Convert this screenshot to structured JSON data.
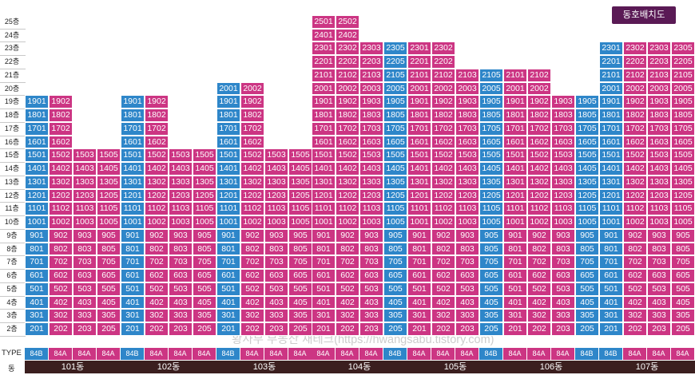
{
  "badge": "동호배치도",
  "floor_suffix": "층",
  "type_row_label": "TYPE",
  "building_row_label": "동",
  "watermark": "황사부 부동산 재테크(https://hwangsabu.tistory.com)",
  "colors": {
    "pink": "#cc3583",
    "blue": "#2e86c9",
    "name_bg": "#3b1f1f",
    "badge_bg": "#5a1a55"
  },
  "chart_data": {
    "type": "table",
    "floors": [
      2,
      3,
      4,
      5,
      6,
      7,
      8,
      9,
      10,
      11,
      12,
      13,
      14,
      15,
      16,
      17,
      18,
      19,
      20,
      21,
      22,
      23,
      24,
      25
    ],
    "buildings": [
      {
        "name": "101동",
        "units": [
          1,
          2,
          3,
          5
        ],
        "types": [
          "84B",
          "84A",
          "84A",
          "84A"
        ],
        "colors": [
          "blue",
          "pink",
          "pink",
          "pink"
        ],
        "max_floor": [
          19,
          19,
          15,
          15
        ]
      },
      {
        "name": "102동",
        "units": [
          1,
          2,
          3,
          5
        ],
        "types": [
          "84B",
          "84A",
          "84A",
          "84A"
        ],
        "colors": [
          "blue",
          "pink",
          "pink",
          "pink"
        ],
        "max_floor": [
          19,
          19,
          15,
          15
        ]
      },
      {
        "name": "103동",
        "units": [
          1,
          2,
          3,
          5
        ],
        "types": [
          "84B",
          "84A",
          "84A",
          "84A"
        ],
        "colors": [
          "blue",
          "pink",
          "pink",
          "pink"
        ],
        "max_floor": [
          20,
          20,
          15,
          15
        ]
      },
      {
        "name": "104동",
        "units": [
          1,
          2,
          3,
          5
        ],
        "types": [
          "84A",
          "84A",
          "84A",
          "84B"
        ],
        "colors": [
          "pink",
          "pink",
          "pink",
          "blue"
        ],
        "max_floor": [
          25,
          25,
          23,
          23
        ]
      },
      {
        "name": "105동",
        "units": [
          1,
          2,
          3,
          5
        ],
        "types": [
          "84A",
          "84A",
          "84A",
          "84B"
        ],
        "colors": [
          "pink",
          "pink",
          "pink",
          "blue"
        ],
        "max_floor": [
          23,
          23,
          21,
          21
        ]
      },
      {
        "name": "106동",
        "units": [
          1,
          2,
          3,
          5
        ],
        "types": [
          "84A",
          "84A",
          "84A",
          "84B"
        ],
        "colors": [
          "pink",
          "pink",
          "pink",
          "blue"
        ],
        "max_floor": [
          21,
          21,
          19,
          19
        ]
      },
      {
        "name": "107동",
        "units": [
          1,
          2,
          3,
          5
        ],
        "types": [
          "84B",
          "84A",
          "84A",
          "84A"
        ],
        "colors": [
          "blue",
          "pink",
          "pink",
          "pink"
        ],
        "max_floor": [
          23,
          23,
          23,
          23
        ]
      }
    ]
  }
}
